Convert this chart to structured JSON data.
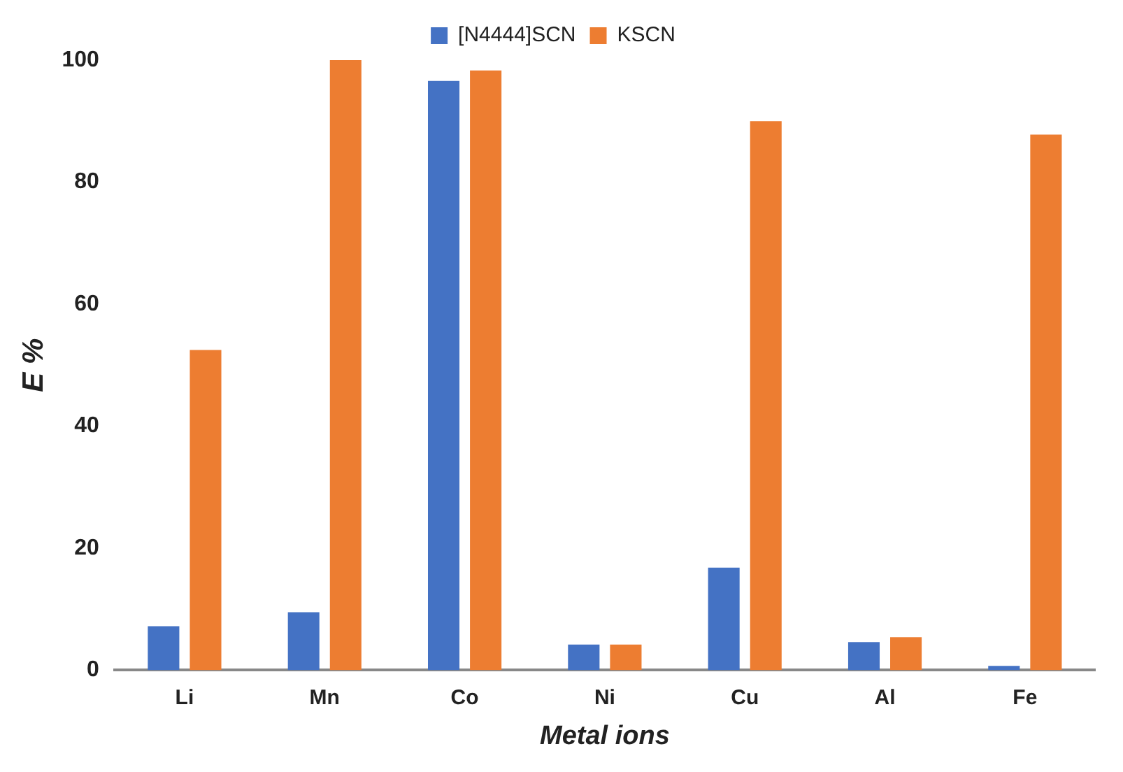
{
  "chart_data": {
    "type": "bar",
    "xlabel": "Metal ions",
    "ylabel": "E %",
    "categories": [
      "Li",
      "Mn",
      "Co",
      "Ni",
      "Cu",
      "Al",
      "Fe"
    ],
    "series": [
      {
        "name": "[N4444]SCN",
        "color": "#4472c4",
        "values": [
          7.2,
          9.5,
          96.6,
          4.2,
          16.8,
          4.6,
          0.7
        ]
      },
      {
        "name": "KSCN",
        "color": "#ed7d31",
        "values": [
          52.5,
          100,
          98.3,
          4.2,
          90,
          5.4,
          87.8
        ]
      }
    ],
    "ylim": [
      0,
      100
    ],
    "yticks": [
      0,
      20,
      40,
      60,
      80,
      100
    ],
    "grid": false,
    "legend": "top"
  }
}
